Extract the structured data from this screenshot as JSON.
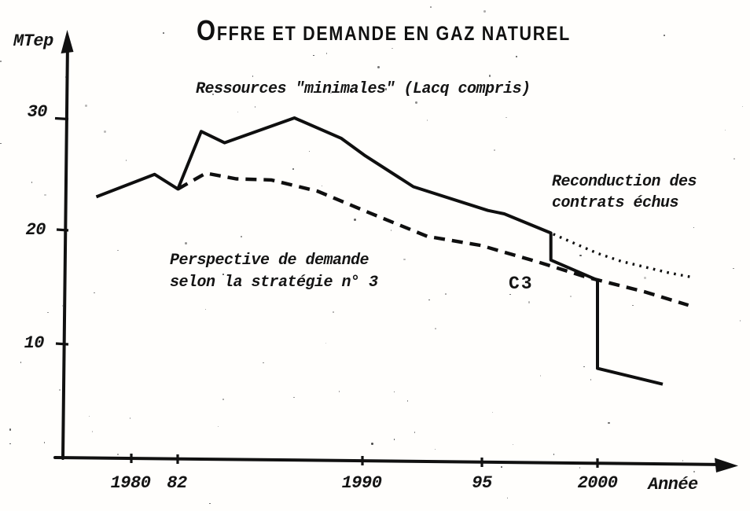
{
  "title": {
    "first_letter": "O",
    "rest": "FFRE ET DEMANDE EN GAZ NATUREL",
    "full": "Offre et demande en gaz naturel"
  },
  "y_axis": {
    "unit": "MTep",
    "ticks": [
      "30",
      "20",
      "10"
    ]
  },
  "x_axis": {
    "label": "Année",
    "ticks": [
      "1980",
      "82",
      "1990",
      "95",
      "2000"
    ]
  },
  "annotations": {
    "supply_label": "Ressources \"minimales\" (Lacq compris)",
    "demand_label_line1": "Perspective de demande",
    "demand_label_line2": "selon la stratégie n° 3",
    "renewal_label_line1": "Reconduction des",
    "renewal_label_line2": "contrats échus",
    "c3_label": "C3"
  },
  "chart_data": {
    "type": "line",
    "title": "Offre et demande en gaz naturel",
    "xlabel": "Année",
    "ylabel": "MTep",
    "xlim": [
      1977,
      2005.5
    ],
    "ylim": [
      0,
      33
    ],
    "x_ticks": [
      1980,
      1982,
      1990,
      1995,
      2000
    ],
    "y_ticks": [
      10,
      20,
      30
    ],
    "grid": false,
    "legend_position": "inline-annotations",
    "series": [
      {
        "key": "supply",
        "name": "Ressources \"minimales\" (Lacq compris)",
        "style": "solid",
        "points": [
          [
            1978.5,
            23.0
          ],
          [
            1981.0,
            25.0
          ],
          [
            1982.0,
            23.7
          ],
          [
            1983.0,
            28.8
          ],
          [
            1984.0,
            27.8
          ],
          [
            1987.0,
            30.0
          ],
          [
            1989.0,
            28.2
          ],
          [
            1990.0,
            26.7
          ],
          [
            1992.1,
            23.9
          ],
          [
            1995.3,
            21.8
          ],
          [
            1996.0,
            21.5
          ],
          [
            1998.0,
            19.8
          ],
          [
            1998.0,
            17.4
          ],
          [
            1999.8,
            15.8
          ],
          [
            2000.0,
            15.6
          ],
          [
            2000.0,
            7.8
          ],
          [
            2002.8,
            6.4
          ]
        ]
      },
      {
        "key": "demand-c3",
        "name": "Perspective de demande selon la stratégie n° 3 (C3)",
        "style": "dashed",
        "points": [
          [
            1982.0,
            23.7
          ],
          [
            1983.2,
            25.1
          ],
          [
            1984.5,
            24.6
          ],
          [
            1986.0,
            24.5
          ],
          [
            1988.0,
            23.5
          ],
          [
            1990.2,
            21.6
          ],
          [
            1992.7,
            19.5
          ],
          [
            1995.0,
            18.7
          ],
          [
            1997.5,
            17.2
          ],
          [
            1999.5,
            15.9
          ],
          [
            2002.0,
            14.6
          ],
          [
            2003.9,
            13.4
          ]
        ]
      },
      {
        "key": "contract-renewal",
        "name": "Reconduction des contrats échus",
        "style": "dotted",
        "points": [
          [
            1998.1,
            19.7
          ],
          [
            1999.1,
            18.8
          ],
          [
            2000.0,
            18.0
          ],
          [
            2001.0,
            17.3
          ],
          [
            2002.0,
            16.8
          ],
          [
            2003.0,
            16.3
          ],
          [
            2004.0,
            15.9
          ]
        ]
      }
    ]
  }
}
